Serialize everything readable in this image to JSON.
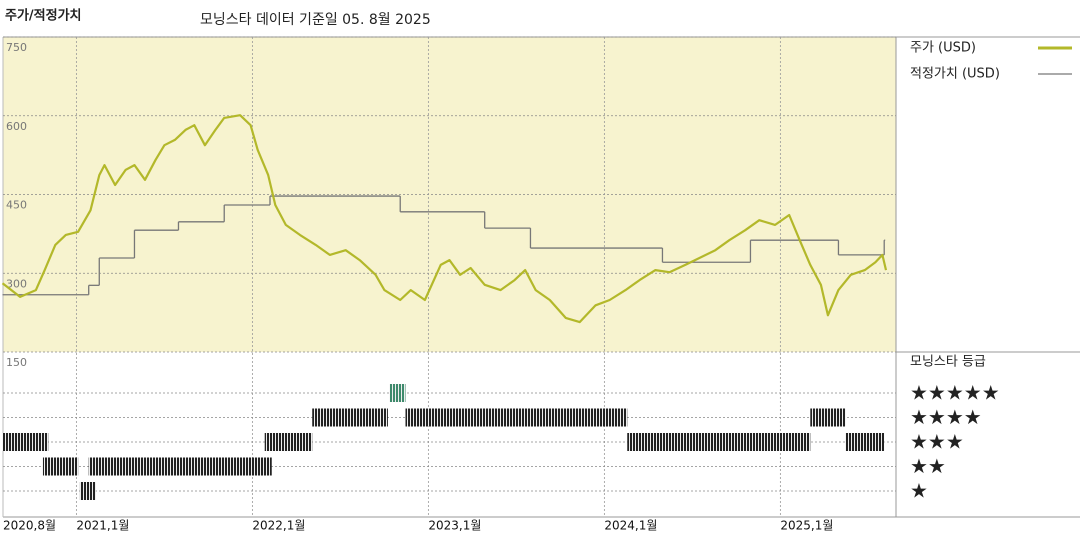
{
  "chart_data": {
    "type": "line",
    "title": "주가/적정가치",
    "subtitle": "모닝스타 데이터 기준일 05. 8월 2025",
    "xlim": [
      2020.583,
      2025.657
    ],
    "ylim": [
      150,
      750
    ],
    "xticks": [
      {
        "value": 2020.583,
        "label": "2020,8월"
      },
      {
        "value": 2021.0,
        "label": "2021,1월"
      },
      {
        "value": 2022.0,
        "label": "2022,1월"
      },
      {
        "value": 2023.0,
        "label": "2023,1월"
      },
      {
        "value": 2024.0,
        "label": "2024,1월"
      },
      {
        "value": 2025.0,
        "label": "2025,1월"
      }
    ],
    "yticks": [
      150,
      300,
      450,
      600,
      750
    ],
    "grid": true,
    "background": "#f7f3cf",
    "series": [
      {
        "name": "주가 (USD)",
        "color": "#b3b82a",
        "x": [
          2020.58,
          2020.68,
          2020.77,
          2020.82,
          2020.88,
          2020.94,
          2021.01,
          2021.08,
          2021.13,
          2021.16,
          2021.22,
          2021.28,
          2021.33,
          2021.39,
          2021.45,
          2021.5,
          2021.56,
          2021.62,
          2021.67,
          2021.73,
          2021.79,
          2021.84,
          2021.93,
          2021.99,
          2022.03,
          2022.09,
          2022.13,
          2022.19,
          2022.27,
          2022.36,
          2022.44,
          2022.53,
          2022.61,
          2022.7,
          2022.75,
          2022.84,
          2022.9,
          2022.98,
          2023.07,
          2023.12,
          2023.18,
          2023.24,
          2023.32,
          2023.41,
          2023.49,
          2023.55,
          2023.61,
          2023.69,
          2023.78,
          2023.86,
          2023.95,
          2024.03,
          2024.12,
          2024.2,
          2024.29,
          2024.37,
          2024.46,
          2024.54,
          2024.63,
          2024.71,
          2024.8,
          2024.88,
          2024.97,
          2025.05,
          2025.11,
          2025.17,
          2025.23,
          2025.27,
          2025.33,
          2025.4,
          2025.48,
          2025.54,
          2025.58,
          2025.6
        ],
        "values": [
          281,
          255,
          268,
          306,
          354,
          373,
          379,
          420,
          487,
          506,
          468,
          497,
          506,
          478,
          516,
          544,
          554,
          573,
          582,
          544,
          573,
          596,
          601,
          582,
          535,
          487,
          430,
          392,
          373,
          354,
          335,
          344,
          325,
          297,
          268,
          249,
          268,
          249,
          316,
          325,
          297,
          310,
          278,
          268,
          287,
          306,
          268,
          249,
          215,
          207,
          239,
          249,
          268,
          287,
          306,
          302,
          316,
          329,
          344,
          363,
          382,
          401,
          392,
          411,
          363,
          316,
          278,
          220,
          268,
          297,
          306,
          321,
          335,
          306
        ]
      },
      {
        "name": "적정가치 (USD)",
        "color": "#777777",
        "drawstyle": "steps-post",
        "x": [
          2020.58,
          2021.07,
          2021.13,
          2021.33,
          2021.58,
          2021.84,
          2022.1,
          2022.84,
          2023.32,
          2023.58,
          2024.33,
          2024.83,
          2025.33,
          2025.59
        ],
        "values": [
          259,
          277,
          329,
          382,
          398,
          430,
          447,
          417,
          386,
          348,
          321,
          363,
          335,
          363
        ]
      }
    ],
    "ratings": {
      "title": "모닝스타 등급",
      "levels": [
        5,
        4,
        3,
        2,
        1
      ],
      "labels": [
        "★★★★★",
        "★★★★",
        "★★★",
        "★★",
        "★"
      ],
      "colors": [
        "#3e8a6c",
        "#222222",
        "#222222",
        "#222222",
        "#222222"
      ],
      "periods": [
        {
          "start": 2020.58,
          "end": 2020.84,
          "rating": 3
        },
        {
          "start": 2020.81,
          "end": 2021.01,
          "rating": 2
        },
        {
          "start": 2021.02,
          "end": 2021.11,
          "rating": 1
        },
        {
          "start": 2021.07,
          "end": 2022.11,
          "rating": 2
        },
        {
          "start": 2022.07,
          "end": 2022.34,
          "rating": 3
        },
        {
          "start": 2022.34,
          "end": 2022.77,
          "rating": 4
        },
        {
          "start": 2022.78,
          "end": 2022.87,
          "rating": 5
        },
        {
          "start": 2022.87,
          "end": 2024.13,
          "rating": 4
        },
        {
          "start": 2024.13,
          "end": 2025.17,
          "rating": 3
        },
        {
          "start": 2025.17,
          "end": 2025.37,
          "rating": 4
        },
        {
          "start": 2025.37,
          "end": 2025.59,
          "rating": 3
        }
      ]
    }
  }
}
